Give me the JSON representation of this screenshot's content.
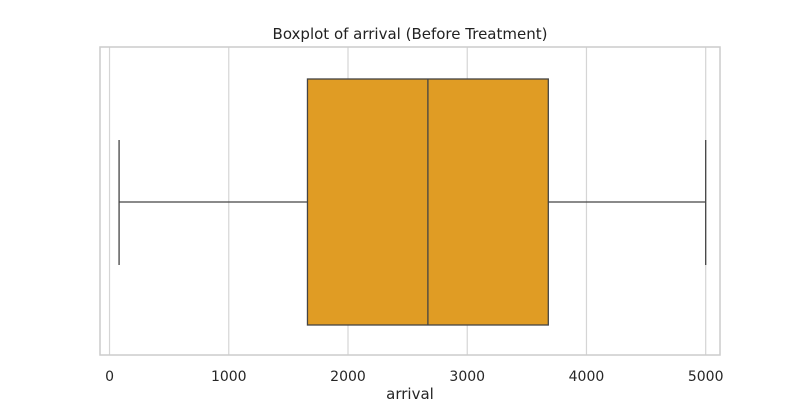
{
  "chart_data": {
    "type": "boxplot",
    "title": "Boxplot of arrival (Before Treatment)",
    "xlabel": "arrival",
    "ylabel": "",
    "orientation": "horizontal",
    "xlim": [
      -80,
      5120
    ],
    "xticks": [
      0,
      1000,
      2000,
      3000,
      4000,
      5000
    ],
    "xtick_labels": [
      "0",
      "1000",
      "2000",
      "3000",
      "4000",
      "5000"
    ],
    "grid": true,
    "box": {
      "whisker_low": 80,
      "q1": 1660,
      "median": 2670,
      "q3": 3680,
      "whisker_high": 5000
    },
    "colors": {
      "box_fill": "#E09C24",
      "line": "#444444",
      "grid": "#d5d5d5",
      "spine": "#cccccc"
    }
  }
}
